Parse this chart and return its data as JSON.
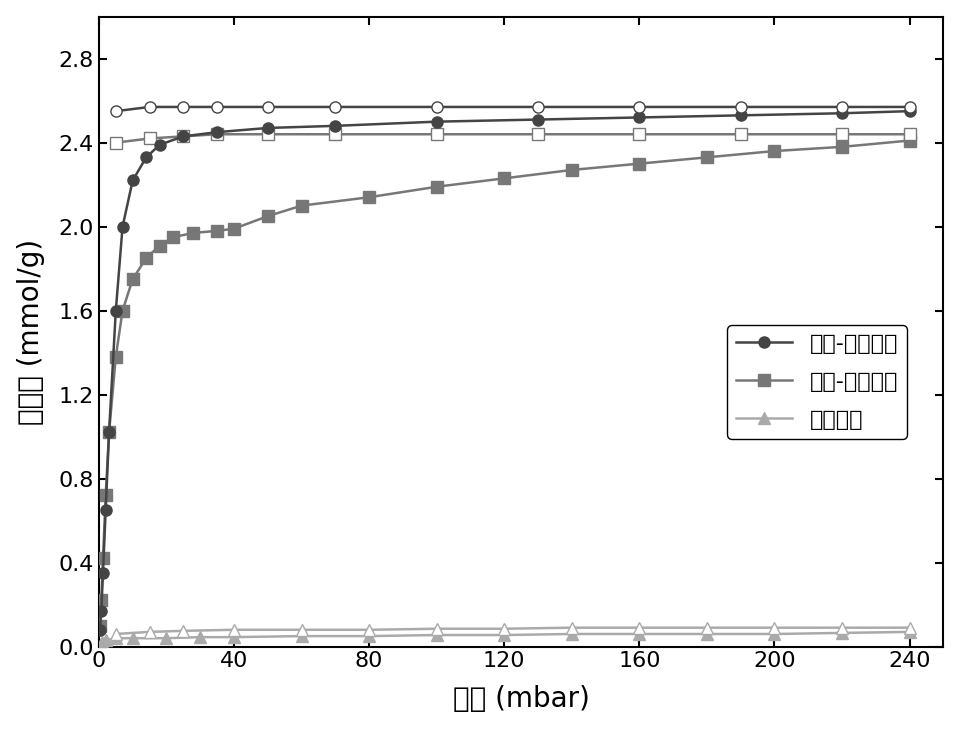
{
  "xlabel": "压力 (mbar)",
  "ylabel": "吸附量 (mmol/g)",
  "xlim": [
    0,
    250
  ],
  "ylim": [
    0.0,
    3.0
  ],
  "xticks": [
    0,
    40,
    80,
    120,
    160,
    200,
    240
  ],
  "yticks": [
    0.0,
    0.4,
    0.8,
    1.2,
    1.6,
    2.0,
    2.4,
    2.8
  ],
  "cis_ads_x": [
    0.3,
    0.7,
    1.2,
    2.0,
    3.0,
    5.0,
    7.0,
    10,
    14,
    18,
    25,
    35,
    50,
    70,
    100,
    130,
    160,
    190,
    220,
    240
  ],
  "cis_ads_y": [
    0.08,
    0.17,
    0.35,
    0.65,
    1.02,
    1.6,
    2.0,
    2.22,
    2.33,
    2.39,
    2.43,
    2.45,
    2.47,
    2.48,
    2.5,
    2.51,
    2.52,
    2.53,
    2.54,
    2.55
  ],
  "cis_des_x": [
    5,
    15,
    25,
    35,
    50,
    70,
    100,
    130,
    160,
    190,
    220,
    240
  ],
  "cis_des_y": [
    2.55,
    2.57,
    2.57,
    2.57,
    2.57,
    2.57,
    2.57,
    2.57,
    2.57,
    2.57,
    2.57,
    2.57
  ],
  "trans_ads_x": [
    0.3,
    0.7,
    1.2,
    2.0,
    3.0,
    5.0,
    7.0,
    10,
    14,
    18,
    22,
    28,
    35,
    40,
    50,
    60,
    80,
    100,
    120,
    140,
    160,
    180,
    200,
    220,
    240
  ],
  "trans_ads_y": [
    0.1,
    0.22,
    0.42,
    0.72,
    1.02,
    1.38,
    1.6,
    1.75,
    1.85,
    1.91,
    1.95,
    1.97,
    1.98,
    1.99,
    2.05,
    2.1,
    2.14,
    2.19,
    2.23,
    2.27,
    2.3,
    2.33,
    2.36,
    2.38,
    2.41
  ],
  "trans_des_x": [
    5,
    15,
    25,
    35,
    50,
    70,
    100,
    130,
    160,
    190,
    220,
    240
  ],
  "trans_des_y": [
    2.4,
    2.42,
    2.43,
    2.44,
    2.44,
    2.44,
    2.44,
    2.44,
    2.44,
    2.44,
    2.44,
    2.44
  ],
  "iso_ads_x": [
    0.5,
    1,
    2,
    5,
    10,
    20,
    30,
    40,
    60,
    80,
    100,
    120,
    140,
    160,
    180,
    200,
    220,
    240
  ],
  "iso_ads_y": [
    0.01,
    0.02,
    0.03,
    0.04,
    0.04,
    0.04,
    0.045,
    0.045,
    0.05,
    0.05,
    0.055,
    0.055,
    0.06,
    0.06,
    0.06,
    0.06,
    0.065,
    0.07
  ],
  "iso_des_x": [
    5,
    15,
    25,
    40,
    60,
    80,
    100,
    120,
    140,
    160,
    180,
    200,
    220,
    240
  ],
  "iso_des_y": [
    0.06,
    0.07,
    0.075,
    0.08,
    0.08,
    0.08,
    0.085,
    0.085,
    0.09,
    0.09,
    0.09,
    0.09,
    0.09,
    0.09
  ],
  "color_dark": "#444444",
  "color_medium": "#777777",
  "color_light": "#aaaaaa",
  "legend_labels": [
    "顺式-间戊二烯",
    "反式-间戊二烯",
    "异戊二烯"
  ],
  "legend_fontsize": 16,
  "axis_fontsize": 20,
  "tick_fontsize": 16
}
